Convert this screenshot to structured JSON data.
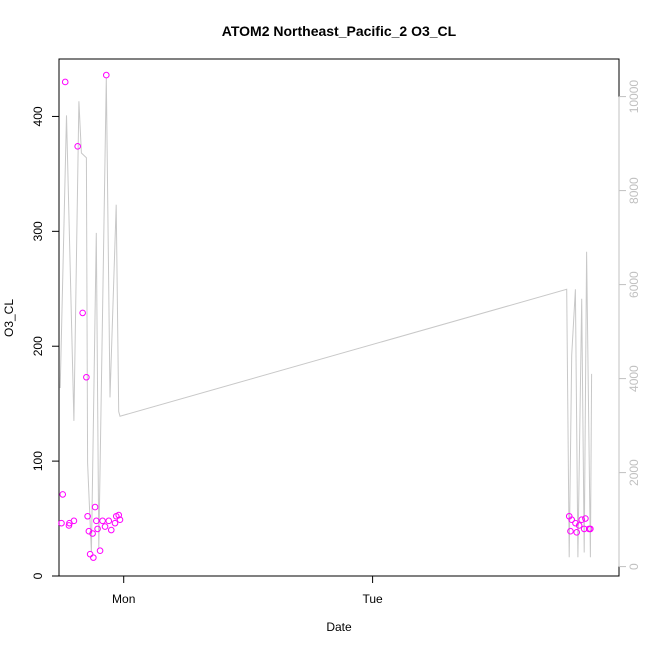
{
  "chart_data": {
    "type": "scatter",
    "title": "ATOM2 Northeast_Pacific_2 O3_CL",
    "xlabel": "Date",
    "ylabel": "O3_CL",
    "x_ticks": [
      "Mon",
      "Tue"
    ],
    "xlim": [
      -0.26,
      1.99
    ],
    "ylim": [
      0,
      450
    ],
    "y_ticks": [
      0,
      100,
      200,
      300,
      400
    ],
    "y2lim": [
      -200,
      10800
    ],
    "y2_ticks": [
      0,
      2000,
      4000,
      6000,
      8000,
      10000
    ],
    "grid": false,
    "colors": {
      "points": "#ff00ff",
      "line": "#c8c8c8"
    },
    "series": [
      {
        "type": "scatter",
        "axis": "left",
        "points": [
          [
            -0.25,
            46
          ],
          [
            -0.245,
            71
          ],
          [
            -0.235,
            430
          ],
          [
            -0.22,
            44
          ],
          [
            -0.218,
            46
          ],
          [
            -0.2,
            48
          ],
          [
            -0.185,
            374
          ],
          [
            -0.165,
            229
          ],
          [
            -0.15,
            173
          ],
          [
            -0.145,
            52
          ],
          [
            -0.14,
            39
          ],
          [
            -0.135,
            19
          ],
          [
            -0.125,
            37
          ],
          [
            -0.122,
            16
          ],
          [
            -0.115,
            60
          ],
          [
            -0.11,
            48
          ],
          [
            -0.105,
            41
          ],
          [
            -0.095,
            22
          ],
          [
            -0.085,
            48
          ],
          [
            -0.075,
            43
          ],
          [
            -0.07,
            436
          ],
          [
            -0.06,
            48
          ],
          [
            -0.05,
            40
          ],
          [
            -0.035,
            46
          ],
          [
            -0.03,
            52
          ],
          [
            -0.02,
            53
          ],
          [
            -0.015,
            49
          ],
          [
            1.79,
            52
          ],
          [
            1.795,
            39
          ],
          [
            1.8,
            49
          ],
          [
            1.815,
            46
          ],
          [
            1.82,
            38
          ],
          [
            1.83,
            44
          ],
          [
            1.84,
            49
          ],
          [
            1.85,
            41
          ],
          [
            1.855,
            50
          ],
          [
            1.87,
            41
          ],
          [
            1.875,
            41
          ]
        ]
      },
      {
        "type": "line",
        "axis": "right",
        "points": [
          [
            -0.255,
            3800
          ],
          [
            -0.23,
            9600
          ],
          [
            -0.2,
            3100
          ],
          [
            -0.18,
            9900
          ],
          [
            -0.17,
            8800
          ],
          [
            -0.15,
            8700
          ],
          [
            -0.145,
            2200
          ],
          [
            -0.13,
            300
          ],
          [
            -0.11,
            7100
          ],
          [
            -0.1,
            400
          ],
          [
            -0.07,
            10400
          ],
          [
            -0.055,
            3600
          ],
          [
            -0.03,
            7700
          ],
          [
            -0.02,
            3300
          ],
          [
            -0.015,
            3200
          ],
          [
            1.78,
            5900
          ],
          [
            1.79,
            200
          ],
          [
            1.8,
            4500
          ],
          [
            1.815,
            5900
          ],
          [
            1.825,
            200
          ],
          [
            1.84,
            5700
          ],
          [
            1.85,
            300
          ],
          [
            1.86,
            6700
          ],
          [
            1.875,
            200
          ],
          [
            1.88,
            4100
          ]
        ]
      }
    ]
  }
}
